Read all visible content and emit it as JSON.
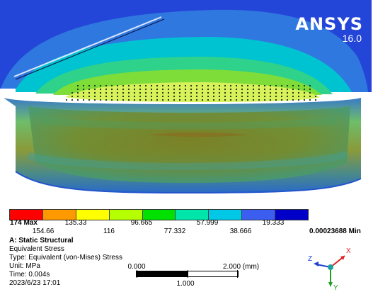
{
  "brand": {
    "name": "ANSYS",
    "version": "16.0"
  },
  "legend": {
    "colors": [
      "#ff0000",
      "#ff9900",
      "#ffff00",
      "#b5ff00",
      "#00e100",
      "#00e6aa",
      "#00c8e6",
      "#3c5ef0",
      "#0000c8"
    ],
    "top_labels": [
      "174 Max",
      "135.33",
      "96.665",
      "57.999",
      "19.333"
    ],
    "bottom_labels": [
      "154.66",
      "116",
      "77.332",
      "38.666",
      "0.00023688 Min"
    ]
  },
  "info": {
    "title": "A: Static Structural",
    "result": "Equivalent Stress",
    "type": "Type: Equivalent (von-Mises) Stress",
    "unit": "Unit: MPa",
    "time": "Time: 0.004s",
    "date": "2023/6/23 17:01"
  },
  "scale": {
    "start": "0.000",
    "end": "2.000 (mm)",
    "mid": "1.000"
  },
  "triad": {
    "x": "X",
    "y": "Y",
    "z": "Z"
  },
  "colors": {
    "deep_blue": "#1d3fd3",
    "light_blue": "#2a80e0",
    "cyan": "#00c8d8",
    "green": "#5fd35a",
    "yellow_green": "#c8e040",
    "dark_olive": "#6a7a20",
    "background": "#ffffff"
  }
}
